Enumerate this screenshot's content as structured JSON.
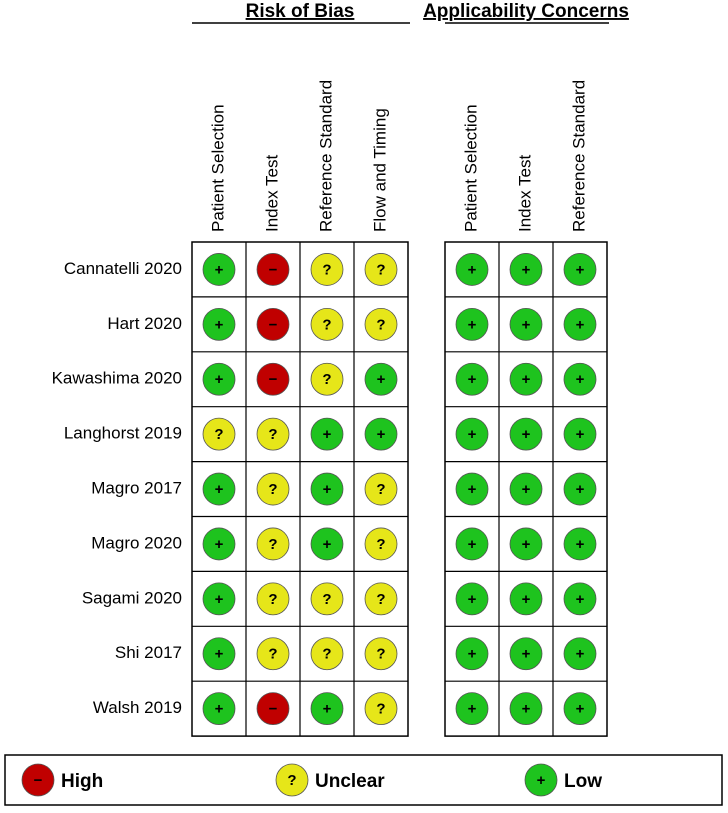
{
  "groups": [
    {
      "title": "Risk of Bias",
      "columns": [
        "Patient Selection",
        "Index Test",
        "Reference Standard",
        "Flow and Timing"
      ]
    },
    {
      "title": "Applicability Concerns",
      "columns": [
        "Patient Selection",
        "Index Test",
        "Reference Standard"
      ]
    }
  ],
  "studies": [
    {
      "name": "Cannatelli 2020",
      "ratings": [
        [
          "+",
          "−",
          "?",
          "?"
        ],
        [
          "+",
          "+",
          "+"
        ]
      ]
    },
    {
      "name": "Hart 2020",
      "ratings": [
        [
          "+",
          "−",
          "?",
          "?"
        ],
        [
          "+",
          "+",
          "+"
        ]
      ]
    },
    {
      "name": "Kawashima 2020",
      "ratings": [
        [
          "+",
          "−",
          "?",
          "+"
        ],
        [
          "+",
          "+",
          "+"
        ]
      ]
    },
    {
      "name": "Langhorst 2019",
      "ratings": [
        [
          "?",
          "?",
          "+",
          "+"
        ],
        [
          "+",
          "+",
          "+"
        ]
      ]
    },
    {
      "name": "Magro 2017",
      "ratings": [
        [
          "+",
          "?",
          "+",
          "?"
        ],
        [
          "+",
          "+",
          "+"
        ]
      ]
    },
    {
      "name": "Magro 2020",
      "ratings": [
        [
          "+",
          "?",
          "+",
          "?"
        ],
        [
          "+",
          "+",
          "+"
        ]
      ]
    },
    {
      "name": "Sagami 2020",
      "ratings": [
        [
          "+",
          "?",
          "?",
          "?"
        ],
        [
          "+",
          "+",
          "+"
        ]
      ]
    },
    {
      "name": "Shi 2017",
      "ratings": [
        [
          "+",
          "?",
          "?",
          "?"
        ],
        [
          "+",
          "+",
          "+"
        ]
      ]
    },
    {
      "name": "Walsh 2019",
      "ratings": [
        [
          "+",
          "−",
          "+",
          "?"
        ],
        [
          "+",
          "+",
          "+"
        ]
      ]
    }
  ],
  "legend": [
    {
      "symbol": "−",
      "label": "High",
      "color": "#c00000"
    },
    {
      "symbol": "?",
      "label": "Unclear",
      "color": "#e6e619"
    },
    {
      "symbol": "+",
      "label": "Low",
      "color": "#1ec31e"
    }
  ]
}
